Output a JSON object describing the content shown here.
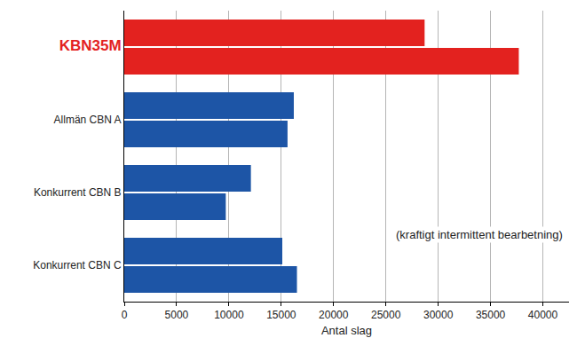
{
  "chart_data": {
    "type": "bar",
    "orientation": "horizontal",
    "categories": [
      "KBN35M",
      "Allmän CBN A",
      "Konkurrent CBN B",
      "Konkurrent CBN C"
    ],
    "series": [
      {
        "colors": [
          "#e3221f",
          "#1d55a6",
          "#1d55a6",
          "#1d55a6"
        ],
        "values": [
          28700,
          16200,
          12100,
          15100
        ]
      },
      {
        "colors": [
          "#e3221f",
          "#1d55a6",
          "#1d55a6",
          "#1d55a6"
        ],
        "values": [
          37700,
          15600,
          9700,
          16500
        ]
      }
    ],
    "x_label": "Antal slag",
    "xlim": [
      0,
      42500
    ],
    "xticks": [
      0,
      5000,
      10000,
      15000,
      20000,
      25000,
      30000,
      35000,
      40000
    ],
    "grid": true,
    "annotations": [
      "(kraftigt intermittent bearbetning)"
    ]
  }
}
